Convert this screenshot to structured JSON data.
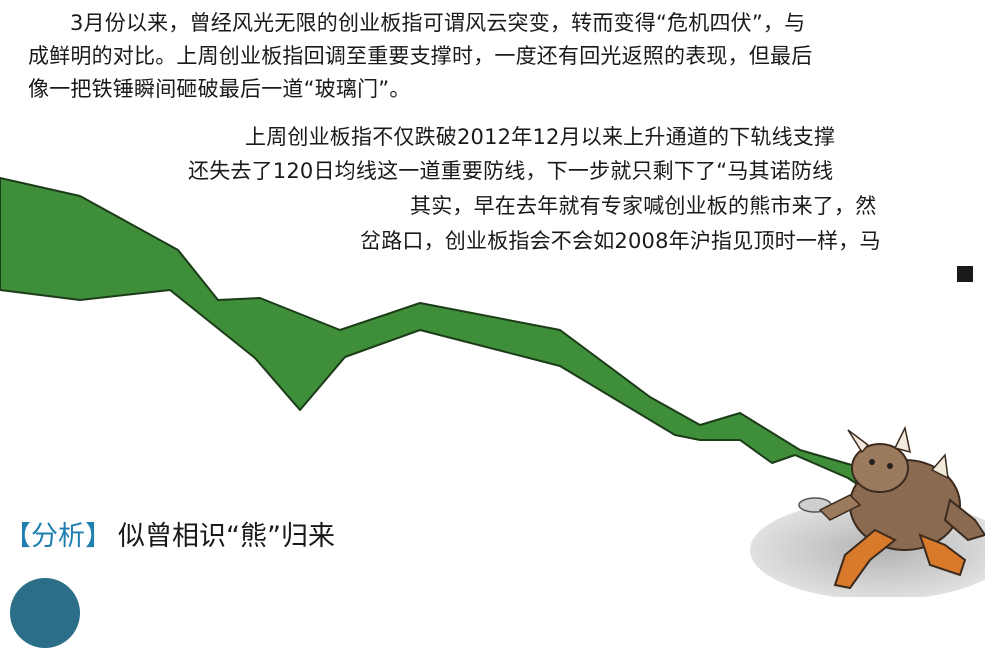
{
  "article": {
    "paragraph1": [
      "3月份以来，曾经风光无限的创业板指可谓风云突变，转而变得“危机四伏”，与",
      "成鲜明的对比。上周创业板指回调至重要支撑时，一度还有回光返照的表现，但最后",
      "像一把铁锤瞬间砸破最后一道“玻璃门”。"
    ],
    "paragraph2": [
      "上周创业板指不仅跌破2012年12月以来上升通道的下轨线支撑",
      "还失去了120日均线这一道重要防线，下一步就只剩下了“马其诺防线",
      "其实，早在去年就有专家喊创业板的熊市来了，然",
      "岔路口，创业板指会不会如2008年沪指见顶时一样，马"
    ]
  },
  "section": {
    "bracket_open": "【",
    "tag": "分析",
    "bracket_close": "】",
    "title": "似曾相识“熊”归来"
  },
  "illustration": {
    "arrow_color": "#3f8f3a",
    "arrow_outline": "#1c3b18",
    "bull_name": "falling-bull-illustration"
  },
  "colors": {
    "accent": "#1f7fb0",
    "badge": "#2a6e88"
  }
}
